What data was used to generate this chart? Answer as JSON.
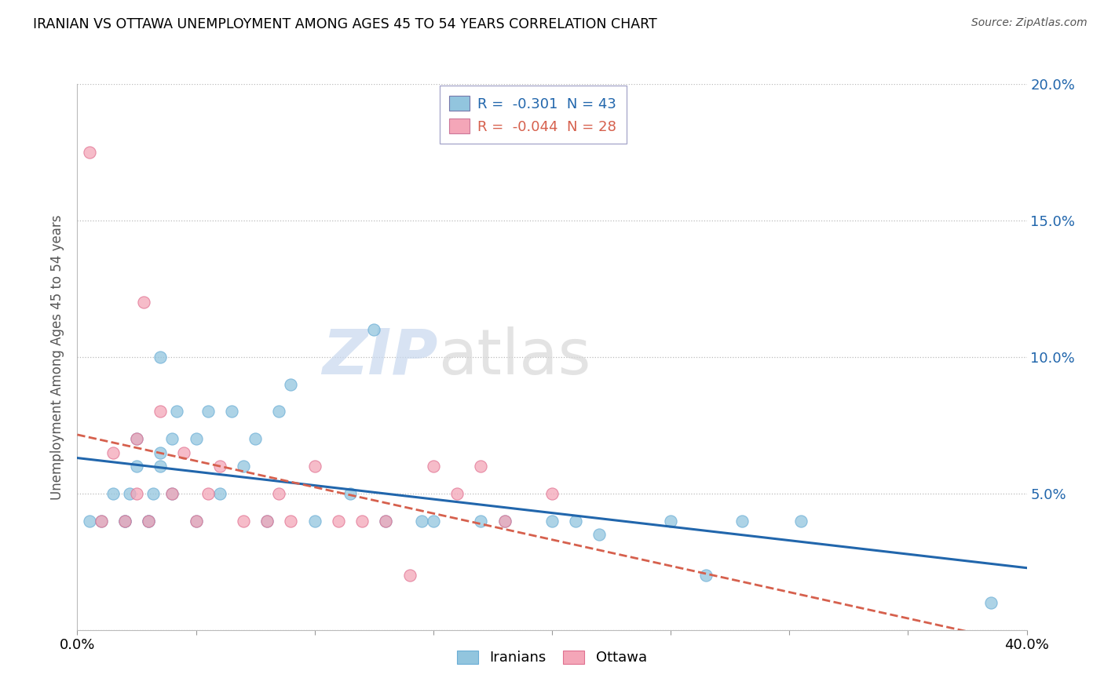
{
  "title": "IRANIAN VS OTTAWA UNEMPLOYMENT AMONG AGES 45 TO 54 YEARS CORRELATION CHART",
  "source": "Source: ZipAtlas.com",
  "ylabel": "Unemployment Among Ages 45 to 54 years",
  "xlim": [
    0.0,
    0.4
  ],
  "ylim": [
    0.0,
    0.2
  ],
  "xticks": [
    0.0,
    0.05,
    0.1,
    0.15,
    0.2,
    0.25,
    0.3,
    0.35,
    0.4
  ],
  "yticks": [
    0.0,
    0.05,
    0.1,
    0.15,
    0.2
  ],
  "right_ytick_labels": [
    "",
    "5.0%",
    "10.0%",
    "15.0%",
    "20.0%"
  ],
  "xtick_labels_sparse": [
    "0.0%",
    "",
    "",
    "",
    "",
    "",
    "",
    "",
    "40.0%"
  ],
  "iranians_R": -0.301,
  "iranians_N": 43,
  "ottawa_R": -0.044,
  "ottawa_N": 28,
  "blue_color": "#92c5de",
  "pink_color": "#f4a6b8",
  "blue_line_color": "#2166ac",
  "pink_line_color": "#d6604d",
  "watermark_zip": "ZIP",
  "watermark_atlas": "atlas",
  "iranians_x": [
    0.005,
    0.01,
    0.015,
    0.02,
    0.02,
    0.022,
    0.025,
    0.025,
    0.03,
    0.03,
    0.032,
    0.035,
    0.035,
    0.035,
    0.04,
    0.04,
    0.042,
    0.05,
    0.05,
    0.055,
    0.06,
    0.065,
    0.07,
    0.075,
    0.08,
    0.085,
    0.09,
    0.1,
    0.115,
    0.125,
    0.13,
    0.145,
    0.15,
    0.17,
    0.18,
    0.2,
    0.21,
    0.22,
    0.25,
    0.265,
    0.28,
    0.305,
    0.385
  ],
  "iranians_y": [
    0.04,
    0.04,
    0.05,
    0.04,
    0.04,
    0.05,
    0.06,
    0.07,
    0.04,
    0.04,
    0.05,
    0.06,
    0.065,
    0.1,
    0.05,
    0.07,
    0.08,
    0.04,
    0.07,
    0.08,
    0.05,
    0.08,
    0.06,
    0.07,
    0.04,
    0.08,
    0.09,
    0.04,
    0.05,
    0.11,
    0.04,
    0.04,
    0.04,
    0.04,
    0.04,
    0.04,
    0.04,
    0.035,
    0.04,
    0.02,
    0.04,
    0.04,
    0.01
  ],
  "ottawa_x": [
    0.005,
    0.01,
    0.015,
    0.02,
    0.025,
    0.025,
    0.028,
    0.03,
    0.035,
    0.04,
    0.045,
    0.05,
    0.055,
    0.06,
    0.07,
    0.08,
    0.085,
    0.09,
    0.1,
    0.11,
    0.12,
    0.13,
    0.14,
    0.15,
    0.16,
    0.17,
    0.18,
    0.2
  ],
  "ottawa_y": [
    0.175,
    0.04,
    0.065,
    0.04,
    0.05,
    0.07,
    0.12,
    0.04,
    0.08,
    0.05,
    0.065,
    0.04,
    0.05,
    0.06,
    0.04,
    0.04,
    0.05,
    0.04,
    0.06,
    0.04,
    0.04,
    0.04,
    0.02,
    0.06,
    0.05,
    0.06,
    0.04,
    0.05
  ]
}
